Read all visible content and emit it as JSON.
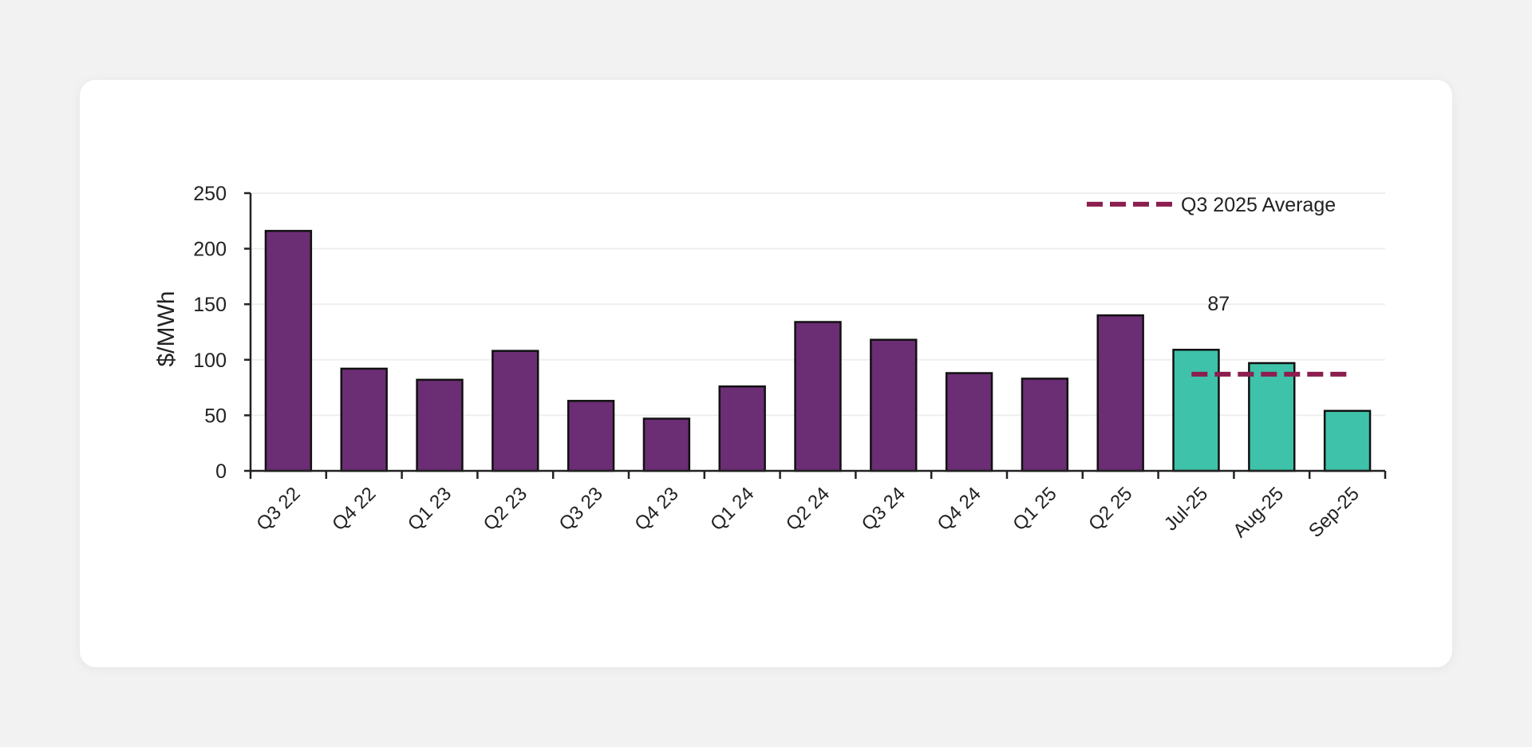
{
  "chart_data": {
    "type": "bar",
    "ylabel": "$/MWh",
    "ylim": [
      0,
      250
    ],
    "yticks": [
      0,
      50,
      100,
      150,
      200,
      250
    ],
    "grid": true,
    "categories": [
      "Q3 22",
      "Q4 22",
      "Q1 23",
      "Q2 23",
      "Q3 23",
      "Q4 23",
      "Q1 24",
      "Q2 24",
      "Q3 24",
      "Q4 24",
      "Q1 25",
      "Q2 25",
      "Jul-25",
      "Aug-25",
      "Sep-25"
    ],
    "values": [
      216,
      92,
      82,
      108,
      63,
      47,
      76,
      134,
      118,
      88,
      83,
      140,
      109,
      97,
      54
    ],
    "bar_groups": [
      "quarterly",
      "quarterly",
      "quarterly",
      "quarterly",
      "quarterly",
      "quarterly",
      "quarterly",
      "quarterly",
      "quarterly",
      "quarterly",
      "quarterly",
      "quarterly",
      "monthly",
      "monthly",
      "monthly"
    ],
    "colors": {
      "quarterly": "#6b2d74",
      "monthly": "#3fc2aa",
      "average_line": "#8b1e4f",
      "grid": "#efefef",
      "axis": "#222222"
    },
    "reference_line": {
      "name": "Q3 2025 Average",
      "value": 87,
      "label": "87",
      "spans": [
        "Jul-25",
        "Aug-25",
        "Sep-25"
      ]
    },
    "legend": {
      "placement": "top-right",
      "entries": [
        "Q3 2025 Average"
      ]
    }
  }
}
